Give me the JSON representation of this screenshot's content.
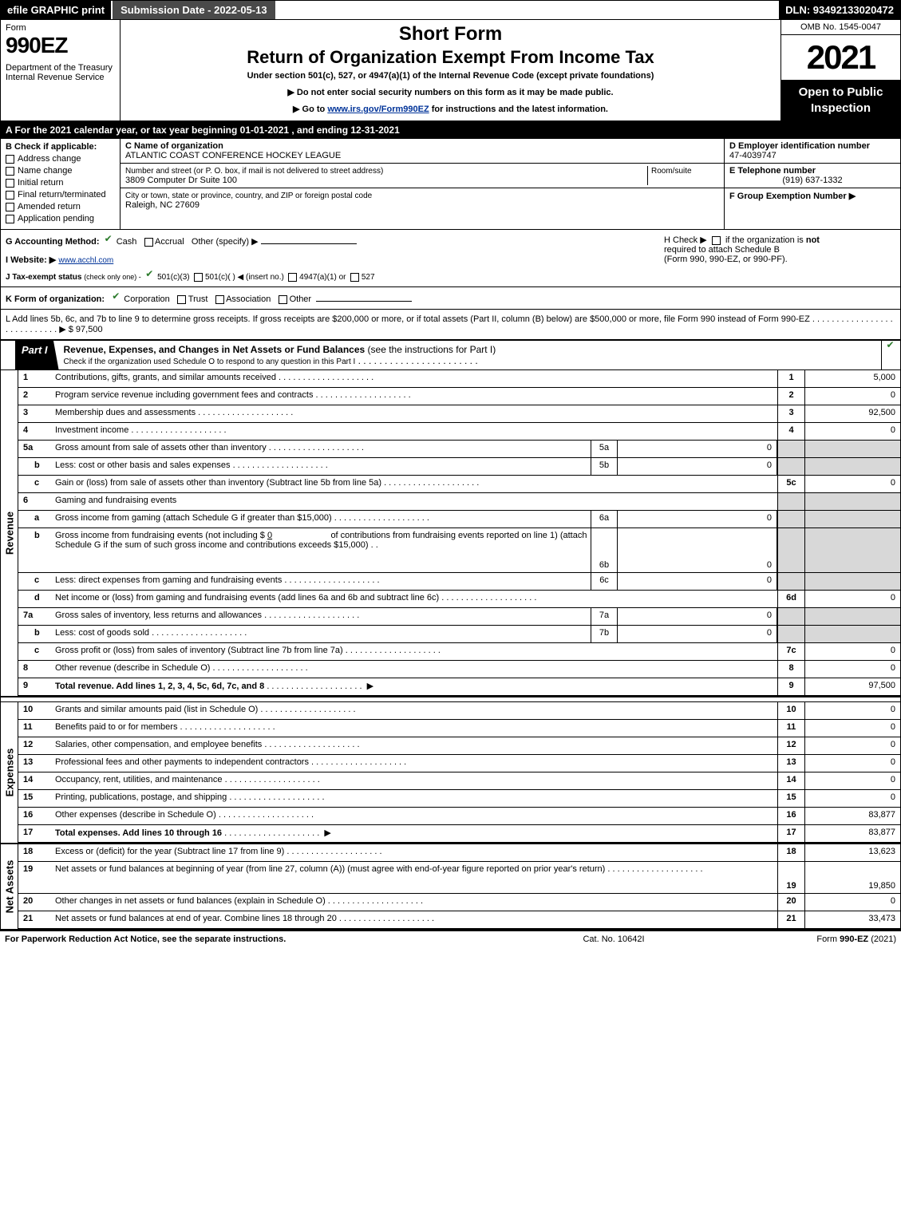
{
  "topbar": {
    "efile": "efile GRAPHIC print",
    "submission": "Submission Date - 2022-05-13",
    "dln": "DLN: 93492133020472"
  },
  "header": {
    "form_word": "Form",
    "form_number": "990EZ",
    "department": "Department of the Treasury",
    "irs": "Internal Revenue Service",
    "short_form": "Short Form",
    "title": "Return of Organization Exempt From Income Tax",
    "under": "Under section 501(c), 527, or 4947(a)(1) of the Internal Revenue Code (except private foundations)",
    "note1_pre": "▶ Do not enter social security numbers on this form as it may be made public.",
    "note2_pre": "▶ Go to ",
    "note2_link": "www.irs.gov/Form990EZ",
    "note2_post": " for instructions and the latest information.",
    "omb": "OMB No. 1545-0047",
    "year": "2021",
    "open": "Open to Public Inspection"
  },
  "A": {
    "text": "A  For the 2021 calendar year, or tax year beginning 01-01-2021 , and ending 12-31-2021"
  },
  "B": {
    "header": "B  Check if applicable:",
    "items": [
      "Address change",
      "Name change",
      "Initial return",
      "Final return/terminated",
      "Amended return",
      "Application pending"
    ]
  },
  "C": {
    "name_lbl": "C Name of organization",
    "name": "ATLANTIC COAST CONFERENCE HOCKEY LEAGUE",
    "street_lbl": "Number and street (or P. O. box, if mail is not delivered to street address)",
    "room_lbl": "Room/suite",
    "street": "3809 Computer Dr Suite 100",
    "city_lbl": "City or town, state or province, country, and ZIP or foreign postal code",
    "city": "Raleigh, NC  27609"
  },
  "D": {
    "ein_lbl": "D Employer identification number",
    "ein": "47-4039747",
    "phone_lbl": "E Telephone number",
    "phone": "(919) 637-1332",
    "group_lbl": "F Group Exemption Number  ▶"
  },
  "G": {
    "label": "G Accounting Method:",
    "cash": "Cash",
    "accrual": "Accrual",
    "other": "Other (specify) ▶"
  },
  "H": {
    "text1": "H  Check ▶",
    "text2": "if the organization is ",
    "not": "not",
    "text3": "required to attach Schedule B",
    "text4": "(Form 990, 990-EZ, or 990-PF)."
  },
  "I": {
    "label": "I Website: ▶",
    "value": "www.acchl.com"
  },
  "J": {
    "label": "J Tax-exempt status",
    "sub": "(check only one) -",
    "a": "501(c)(3)",
    "b": "501(c)(  ) ◀ (insert no.)",
    "c": "4947(a)(1) or",
    "d": "527"
  },
  "K": {
    "label": "K Form of organization:",
    "corp": "Corporation",
    "trust": "Trust",
    "assoc": "Association",
    "other": "Other"
  },
  "L": {
    "text": "L Add lines 5b, 6c, and 7b to line 9 to determine gross receipts. If gross receipts are $200,000 or more, or if total assets (Part II, column (B) below) are $500,000 or more, file Form 990 instead of Form 990-EZ",
    "trail": ".  .  .  .  .  .  .  .  .  .  .  .  .  .  .  .  .  .  .  .  .  .  .  .  .  .  .  .  ▶ $ 97,500"
  },
  "part1": {
    "tag": "Part I",
    "title": "Revenue, Expenses, and Changes in Net Assets or Fund Balances",
    "sub": "(see the instructions for Part I)",
    "check_line": "Check if the organization used Schedule O to respond to any question in this Part I"
  },
  "revenue_lines": [
    {
      "n": "1",
      "d": "Contributions, gifts, grants, and similar amounts received",
      "rn": "1",
      "rv": "5,000"
    },
    {
      "n": "2",
      "d": "Program service revenue including government fees and contracts",
      "rn": "2",
      "rv": "0"
    },
    {
      "n": "3",
      "d": "Membership dues and assessments",
      "rn": "3",
      "rv": "92,500"
    },
    {
      "n": "4",
      "d": "Investment income",
      "rn": "4",
      "rv": "0"
    }
  ],
  "line5a": {
    "n": "5a",
    "d": "Gross amount from sale of assets other than inventory",
    "mn": "5a",
    "mv": "0"
  },
  "line5b": {
    "n": "b",
    "d": "Less: cost or other basis and sales expenses",
    "mn": "5b",
    "mv": "0"
  },
  "line5c": {
    "n": "c",
    "d": "Gain or (loss) from sale of assets other than inventory (Subtract line 5b from line 5a)",
    "rn": "5c",
    "rv": "0"
  },
  "line6": {
    "n": "6",
    "d": "Gaming and fundraising events"
  },
  "line6a": {
    "n": "a",
    "d": "Gross income from gaming (attach Schedule G if greater than $15,000)",
    "mn": "6a",
    "mv": "0"
  },
  "line6b": {
    "n": "b",
    "d1": "Gross income from fundraising events (not including $",
    "amt": "0",
    "d2": "of contributions from fundraising events reported on line 1) (attach Schedule G if the sum of such gross income and contributions exceeds $15,000)",
    "mn": "6b",
    "mv": "0"
  },
  "line6c": {
    "n": "c",
    "d": "Less: direct expenses from gaming and fundraising events",
    "mn": "6c",
    "mv": "0"
  },
  "line6d": {
    "n": "d",
    "d": "Net income or (loss) from gaming and fundraising events (add lines 6a and 6b and subtract line 6c)",
    "rn": "6d",
    "rv": "0"
  },
  "line7a": {
    "n": "7a",
    "d": "Gross sales of inventory, less returns and allowances",
    "mn": "7a",
    "mv": "0"
  },
  "line7b": {
    "n": "b",
    "d": "Less: cost of goods sold",
    "mn": "7b",
    "mv": "0"
  },
  "line7c": {
    "n": "c",
    "d": "Gross profit or (loss) from sales of inventory (Subtract line 7b from line 7a)",
    "rn": "7c",
    "rv": "0"
  },
  "line8": {
    "n": "8",
    "d": "Other revenue (describe in Schedule O)",
    "rn": "8",
    "rv": "0"
  },
  "line9": {
    "n": "9",
    "d": "Total revenue. Add lines 1, 2, 3, 4, 5c, 6d, 7c, and 8",
    "rn": "9",
    "rv": "97,500"
  },
  "expense_lines": [
    {
      "n": "10",
      "d": "Grants and similar amounts paid (list in Schedule O)",
      "rn": "10",
      "rv": "0"
    },
    {
      "n": "11",
      "d": "Benefits paid to or for members",
      "rn": "11",
      "rv": "0"
    },
    {
      "n": "12",
      "d": "Salaries, other compensation, and employee benefits",
      "rn": "12",
      "rv": "0"
    },
    {
      "n": "13",
      "d": "Professional fees and other payments to independent contractors",
      "rn": "13",
      "rv": "0"
    },
    {
      "n": "14",
      "d": "Occupancy, rent, utilities, and maintenance",
      "rn": "14",
      "rv": "0"
    },
    {
      "n": "15",
      "d": "Printing, publications, postage, and shipping",
      "rn": "15",
      "rv": "0"
    },
    {
      "n": "16",
      "d": "Other expenses (describe in Schedule O)",
      "rn": "16",
      "rv": "83,877"
    },
    {
      "n": "17",
      "d": "Total expenses. Add lines 10 through 16",
      "rn": "17",
      "rv": "83,877",
      "arrow": true,
      "bold": true
    }
  ],
  "netassets_lines": [
    {
      "n": "18",
      "d": "Excess or (deficit) for the year (Subtract line 17 from line 9)",
      "rn": "18",
      "rv": "13,623"
    },
    {
      "n": "19",
      "d": "Net assets or fund balances at beginning of year (from line 27, column (A)) (must agree with end-of-year figure reported on prior year's return)",
      "rn": "19",
      "rv": "19,850",
      "tall": true
    },
    {
      "n": "20",
      "d": "Other changes in net assets or fund balances (explain in Schedule O)",
      "rn": "20",
      "rv": "0"
    },
    {
      "n": "21",
      "d": "Net assets or fund balances at end of year. Combine lines 18 through 20",
      "rn": "21",
      "rv": "33,473"
    }
  ],
  "vlabels": {
    "rev": "Revenue",
    "exp": "Expenses",
    "net": "Net Assets"
  },
  "footer": {
    "l": "For Paperwork Reduction Act Notice, see the separate instructions.",
    "c": "Cat. No. 10642I",
    "r_pre": "Form ",
    "r_form": "990-EZ",
    "r_post": " (2021)"
  }
}
